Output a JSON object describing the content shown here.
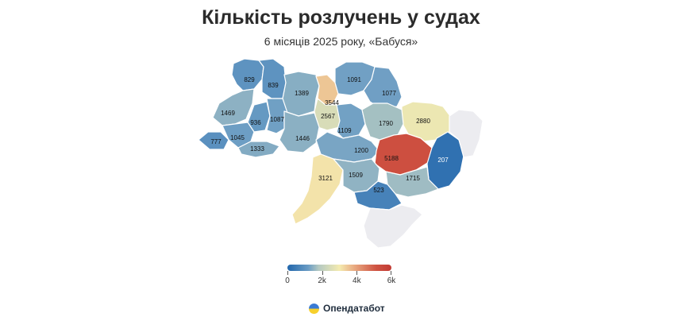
{
  "title": "Кількість розлучень у судах",
  "subtitle": "6 місяців 2025 року, «Бабуся»",
  "colors": {
    "scale": [
      "#2166ac",
      "#6a9cc4",
      "#b4c9c2",
      "#f4ebb0",
      "#e8a77f",
      "#cf5443",
      "#c23b34"
    ],
    "no_data": "#ececf0",
    "border": "#ffffff"
  },
  "legend": {
    "min": 0,
    "max": 6000,
    "ticks": [
      {
        "value": 0,
        "label": "0"
      },
      {
        "value": 2000,
        "label": "2k"
      },
      {
        "value": 4000,
        "label": "4k"
      },
      {
        "value": 6000,
        "label": "6k"
      }
    ]
  },
  "regions": [
    {
      "id": "volyn",
      "value": 829
    },
    {
      "id": "rivne",
      "value": 839
    },
    {
      "id": "zhytomyr",
      "value": 1389
    },
    {
      "id": "kyiv-city",
      "value": 3544
    },
    {
      "id": "kyiv-oblast",
      "value": 2567
    },
    {
      "id": "chernihiv",
      "value": 1091
    },
    {
      "id": "sumy",
      "value": 1077
    },
    {
      "id": "kharkiv",
      "value": 2880
    },
    {
      "id": "lviv",
      "value": 1469
    },
    {
      "id": "ternopil",
      "value": 936
    },
    {
      "id": "khmelnytskyi",
      "value": 1087
    },
    {
      "id": "vinnytsia",
      "value": 1446
    },
    {
      "id": "cherkasy",
      "value": 1109
    },
    {
      "id": "poltava",
      "value": 1790
    },
    {
      "id": "zakarpattia",
      "value": 777
    },
    {
      "id": "ivano-frankivsk",
      "value": 1045
    },
    {
      "id": "chernivtsi",
      "value": 1333
    },
    {
      "id": "kirovohrad",
      "value": 1200
    },
    {
      "id": "dnipropetrovsk",
      "value": 5188
    },
    {
      "id": "donetsk",
      "value": 207
    },
    {
      "id": "odesa",
      "value": 3121
    },
    {
      "id": "mykolaiv",
      "value": 1509
    },
    {
      "id": "zaporizhzhia",
      "value": 1715
    },
    {
      "id": "kherson",
      "value": 523
    },
    {
      "id": "luhansk",
      "value": null
    },
    {
      "id": "crimea",
      "value": null
    }
  ],
  "brand": {
    "name": "Опендатабот"
  }
}
